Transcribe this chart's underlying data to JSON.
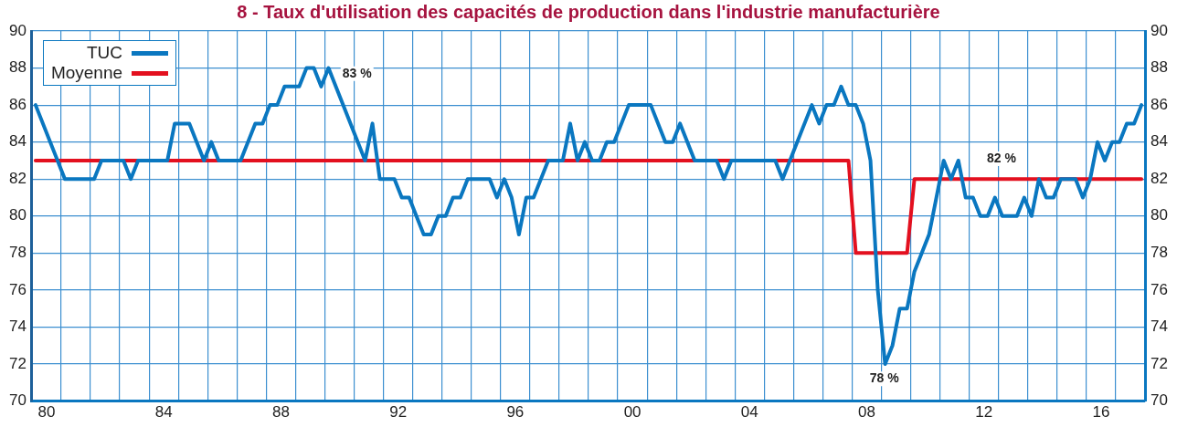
{
  "chart_data": {
    "type": "line",
    "title": "8 - Taux d'utilisation des capacités de production dans l'industrie manufacturière",
    "xlim": [
      1979.5,
      2017.5
    ],
    "xticks": [
      {
        "value": 1979.5,
        "label": null
      },
      {
        "value": 1980.5,
        "label": null
      },
      {
        "value": 1981.5,
        "label": null
      },
      {
        "value": 1982.5,
        "label": null
      },
      {
        "value": 1983.5,
        "label": null
      },
      {
        "value": 1984.5,
        "label": null
      },
      {
        "value": 1985.5,
        "label": null
      },
      {
        "value": 1986.5,
        "label": null
      },
      {
        "value": 1987.5,
        "label": null
      },
      {
        "value": 1988.5,
        "label": null
      },
      {
        "value": 1989.5,
        "label": null
      },
      {
        "value": 1990.5,
        "label": null
      },
      {
        "value": 1991.5,
        "label": null
      },
      {
        "value": 1992.5,
        "label": null
      },
      {
        "value": 1993.5,
        "label": null
      },
      {
        "value": 1994.5,
        "label": null
      },
      {
        "value": 1995.5,
        "label": null
      },
      {
        "value": 1996.5,
        "label": null
      },
      {
        "value": 1997.5,
        "label": null
      },
      {
        "value": 1998.5,
        "label": null
      },
      {
        "value": 1999.5,
        "label": null
      },
      {
        "value": 2000.5,
        "label": null
      },
      {
        "value": 2001.5,
        "label": null
      },
      {
        "value": 2002.5,
        "label": null
      },
      {
        "value": 2003.5,
        "label": null
      },
      {
        "value": 2004.5,
        "label": null
      },
      {
        "value": 2005.5,
        "label": null
      },
      {
        "value": 2006.5,
        "label": null
      },
      {
        "value": 2007.5,
        "label": null
      },
      {
        "value": 2008.5,
        "label": null
      },
      {
        "value": 2009.5,
        "label": null
      },
      {
        "value": 2010.5,
        "label": null
      },
      {
        "value": 2011.5,
        "label": null
      },
      {
        "value": 2012.5,
        "label": null
      },
      {
        "value": 2013.5,
        "label": null
      },
      {
        "value": 2014.5,
        "label": null
      },
      {
        "value": 2015.5,
        "label": null
      },
      {
        "value": 2016.5,
        "label": null
      },
      {
        "value": 2017.5,
        "label": null
      },
      {
        "value": 1980,
        "label": "80"
      },
      {
        "value": 1984,
        "label": "84"
      },
      {
        "value": 1988,
        "label": "88"
      },
      {
        "value": 1992,
        "label": "92"
      },
      {
        "value": 1996,
        "label": "96"
      },
      {
        "value": 2000,
        "label": "00"
      },
      {
        "value": 2004,
        "label": "04"
      },
      {
        "value": 2008,
        "label": "08"
      },
      {
        "value": 2012,
        "label": "12"
      },
      {
        "value": 2016,
        "label": "16"
      }
    ],
    "ylim": [
      70,
      90
    ],
    "yticks": [
      70,
      72,
      74,
      76,
      78,
      80,
      82,
      84,
      86,
      88,
      90
    ],
    "y2lim": [
      70,
      90
    ],
    "y2ticks": [
      70,
      72,
      74,
      76,
      78,
      80,
      82,
      84,
      86,
      88,
      90
    ],
    "grid": true,
    "legend": "top left",
    "marker": "none",
    "line_style": "solid",
    "annotations": [
      "83 %",
      "82 %",
      "78 %"
    ],
    "series": [
      {
        "name": "TUC",
        "color": "#0a77c0",
        "x": [
          1979.625,
          1980.625,
          1981.625,
          1981.875,
          1982.625,
          1982.875,
          1983.125,
          1984.125,
          1984.375,
          1984.875,
          1985.375,
          1985.625,
          1985.875,
          1986.625,
          1987.125,
          1987.375,
          1987.625,
          1987.875,
          1988.125,
          1988.625,
          1988.875,
          1989.125,
          1989.375,
          1989.625,
          1990.875,
          1991.125,
          1991.375,
          1991.875,
          1992.125,
          1992.375,
          1992.875,
          1993.125,
          1993.375,
          1993.625,
          1993.875,
          1994.125,
          1994.375,
          1995.125,
          1995.375,
          1995.625,
          1995.875,
          1996.125,
          1996.375,
          1996.625,
          1997.125,
          1997.625,
          1997.875,
          1998.125,
          1998.375,
          1998.625,
          1998.875,
          1999.125,
          1999.375,
          1999.875,
          2000.625,
          2001.125,
          2001.375,
          2001.625,
          2002.125,
          2002.875,
          2003.125,
          2003.375,
          2004.875,
          2005.125,
          2005.375,
          2006.125,
          2006.375,
          2006.625,
          2006.875,
          2007.125,
          2007.375,
          2007.625,
          2007.875,
          2008.125,
          2008.375,
          2008.625,
          2008.875,
          2009.125,
          2009.375,
          2009.625,
          2010.125,
          2010.375,
          2010.625,
          2010.875,
          2011.125,
          2011.375,
          2011.625,
          2011.875,
          2012.125,
          2012.375,
          2012.625,
          2013.125,
          2013.375,
          2013.625,
          2013.875,
          2014.125,
          2014.375,
          2014.625,
          2015.125,
          2015.375,
          2015.625,
          2015.875,
          2016.125,
          2016.375,
          2016.625,
          2016.875,
          2017.125,
          2017.375
        ],
        "values": [
          86,
          82,
          82,
          83,
          83,
          82,
          83,
          83,
          85,
          85,
          83,
          84,
          83,
          83,
          85,
          85,
          86,
          86,
          87,
          87,
          88,
          88,
          87,
          88,
          83,
          85,
          82,
          82,
          81,
          81,
          79,
          79,
          80,
          80,
          81,
          81,
          82,
          82,
          81,
          82,
          81,
          79,
          81,
          81,
          83,
          83,
          85,
          83,
          84,
          83,
          83,
          84,
          84,
          86,
          86,
          84,
          84,
          85,
          83,
          83,
          82,
          83,
          83,
          82,
          83,
          86,
          85,
          86,
          86,
          87,
          86,
          86,
          85,
          83,
          76,
          72,
          73,
          75,
          75,
          77,
          79,
          81,
          83,
          82,
          83,
          81,
          81,
          80,
          80,
          81,
          80,
          80,
          81,
          80,
          82,
          81,
          81,
          82,
          82,
          81,
          82,
          84,
          83,
          84,
          84,
          85,
          85,
          86
        ]
      },
      {
        "name": "Moyenne",
        "color": "#e3101f",
        "x": [
          1979.625,
          2007.375,
          2007.625,
          2009.375,
          2009.625,
          2017.375
        ],
        "values": [
          83,
          83,
          78,
          78,
          82,
          82
        ]
      }
    ]
  }
}
